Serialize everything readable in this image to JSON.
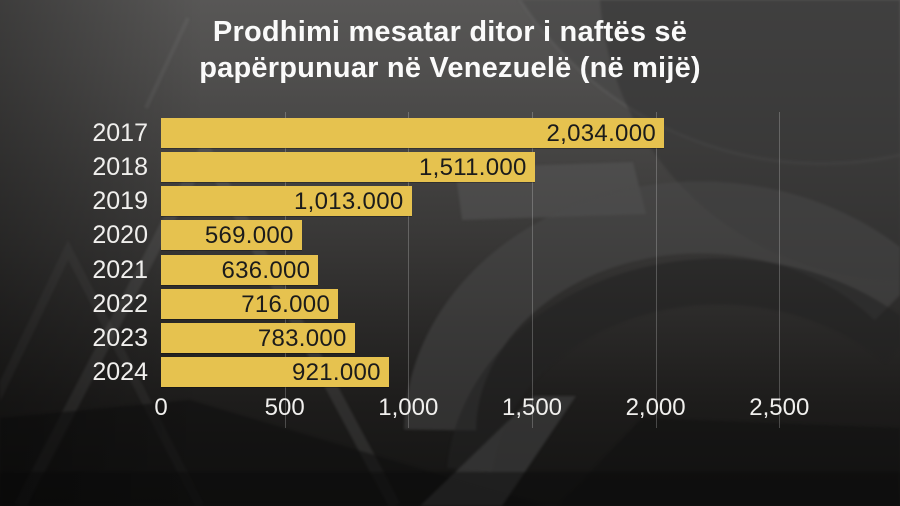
{
  "title_lines": [
    "Prodhimi mesatar ditor i naftës së",
    "papërpunuar në Venezuelë (në mijë)"
  ],
  "colors": {
    "bar": "#e6c24f",
    "bar_label_text": "#1b1b1b",
    "axis_text": "#f0efed",
    "title_text": "#fafafa",
    "gridline": "rgba(255,255,255,0.22)",
    "background_top": "#585756",
    "background_bottom": "#131312"
  },
  "chart_data": {
    "type": "bar",
    "orientation": "horizontal",
    "title": "Prodhimi mesatar ditor i naftës së papërpunuar në Venezuelë (në mijë)",
    "categories": [
      "2017",
      "2018",
      "2019",
      "2020",
      "2021",
      "2022",
      "2023",
      "2024"
    ],
    "values": [
      2034,
      1511,
      1013,
      569,
      636,
      716,
      783,
      921
    ],
    "value_labels": [
      "2,034.000",
      "1,511.000",
      "1,013.000",
      "569.000",
      "636.000",
      "716.000",
      "783.000",
      "921.000"
    ],
    "xlabel": "",
    "ylabel": "",
    "xlim": [
      0,
      2500
    ],
    "x_tick_values": [
      0,
      500,
      1000,
      1500,
      2000,
      2500
    ],
    "x_tick_labels": [
      "0",
      "500",
      "1,000",
      "1,500",
      "2,000",
      "2,500"
    ],
    "grid": "vertical-faint",
    "legend": "none",
    "value_label_position": "inside-end"
  }
}
